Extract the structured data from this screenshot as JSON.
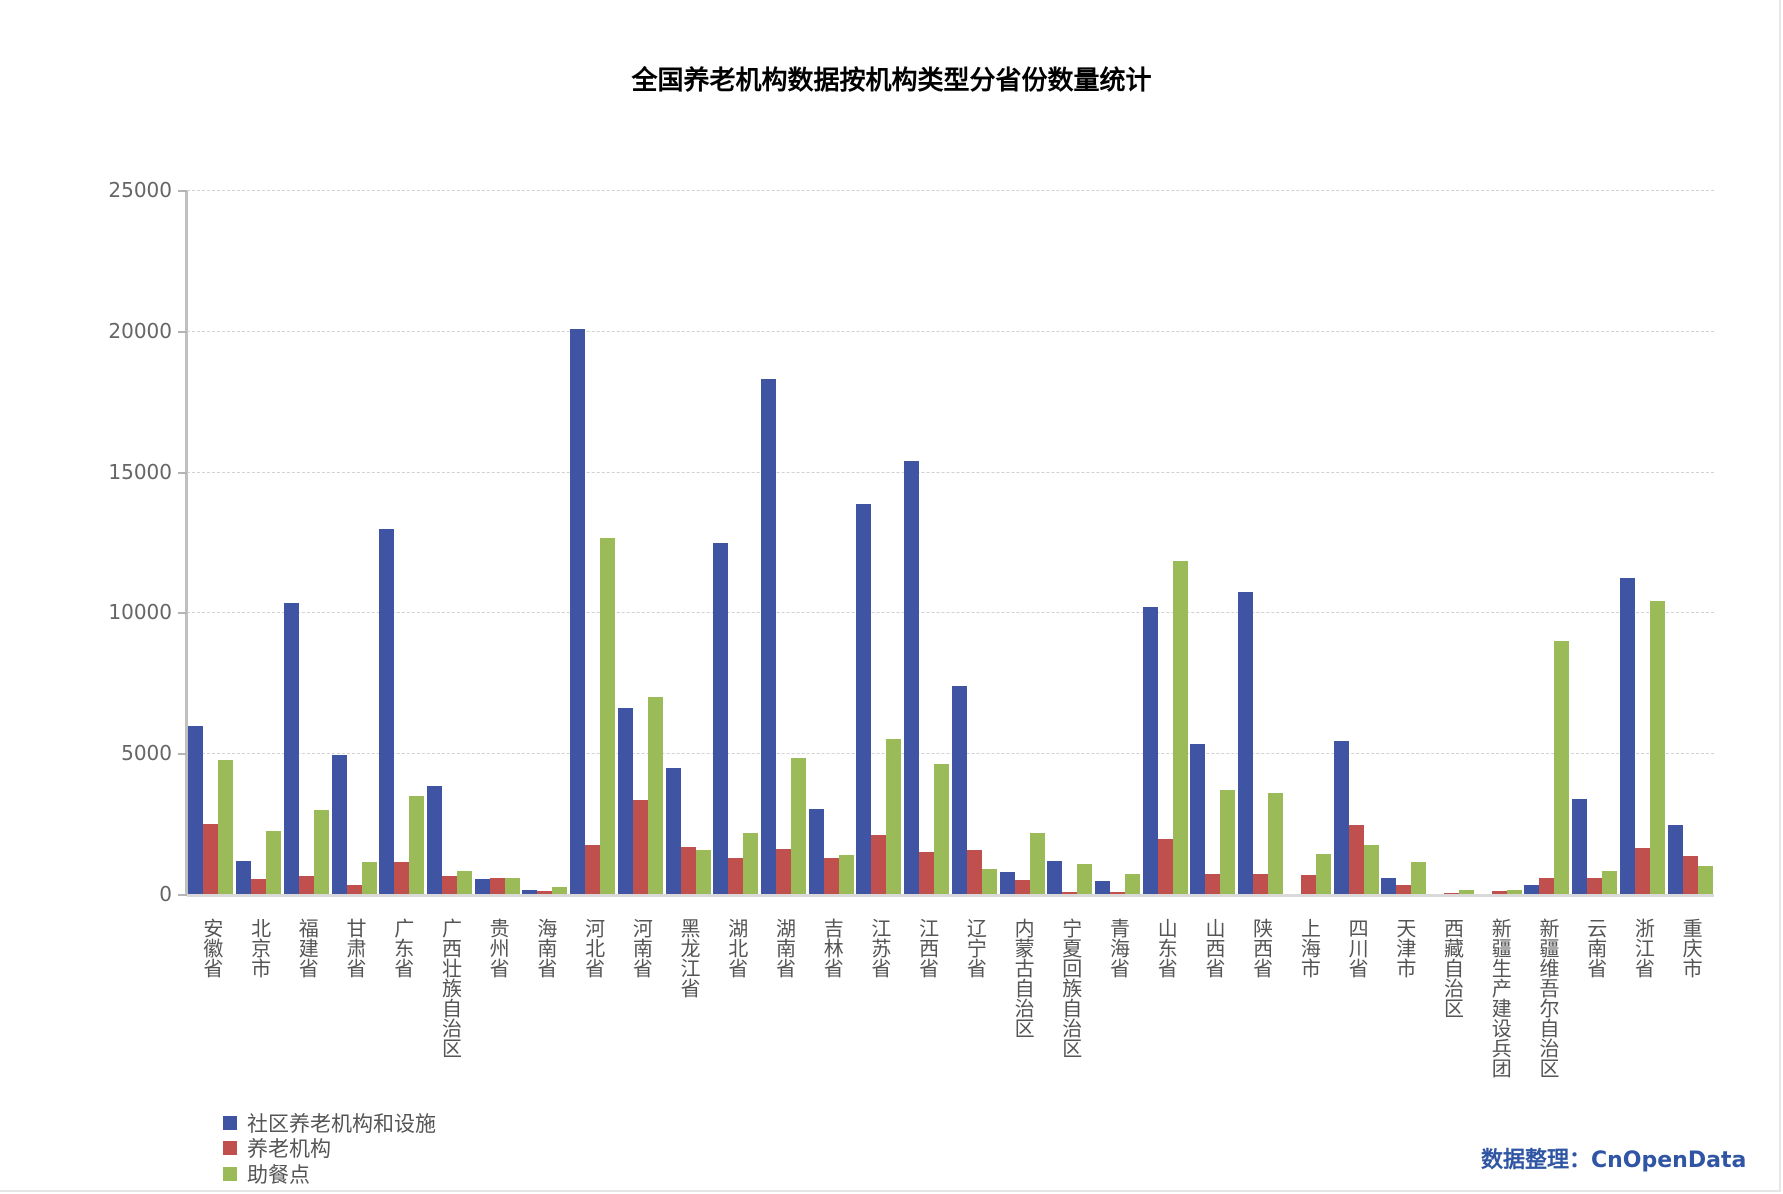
{
  "title": "全国养老机构数据按机构类型分省份数量统计",
  "source_label": "数据整理：CnOpenData",
  "legend": [
    {
      "label": "社区养老机构和设施",
      "color": "#3f55a3"
    },
    {
      "label": "养老机构",
      "color": "#c0504d"
    },
    {
      "label": "助餐点",
      "color": "#9bbb59"
    }
  ],
  "y_axis": {
    "ticks": [
      "0",
      "5000",
      "10000",
      "15000",
      "20000",
      "25000"
    ]
  },
  "chart_data": {
    "type": "bar",
    "title": "全国养老机构数据按机构类型分省份数量统计",
    "xlabel": "",
    "ylabel": "",
    "ylim": [
      0,
      25000
    ],
    "grid": true,
    "legend_position": "bottom-left",
    "categories": [
      "安徽省",
      "北京市",
      "福建省",
      "甘肃省",
      "广东省",
      "广西壮族自治区",
      "贵州省",
      "海南省",
      "河北省",
      "河南省",
      "黑龙江省",
      "湖北省",
      "湖南省",
      "吉林省",
      "江苏省",
      "江西省",
      "辽宁省",
      "内蒙古自治区",
      "宁夏回族自治区",
      "青海省",
      "山东省",
      "山西省",
      "陕西省",
      "上海市",
      "四川省",
      "天津市",
      "西藏自治区",
      "新疆生产建设兵团",
      "新疆维吾尔自治区",
      "云南省",
      "浙江省",
      "重庆市"
    ],
    "series": [
      {
        "name": "社区养老机构和设施",
        "color": "#3f55a3",
        "values": [
          5980,
          1180,
          10330,
          4920,
          12960,
          3840,
          540,
          150,
          20070,
          6620,
          4480,
          12450,
          18280,
          3020,
          13840,
          15380,
          7400,
          780,
          1180,
          460,
          10180,
          5310,
          10720,
          0,
          5440,
          570,
          0,
          0,
          330,
          3380,
          11210,
          2450
        ]
      },
      {
        "name": "养老机构",
        "color": "#c0504d",
        "values": [
          2500,
          540,
          640,
          330,
          1140,
          640,
          570,
          110,
          1750,
          3350,
          1670,
          1270,
          1600,
          1270,
          2110,
          1500,
          1570,
          510,
          60,
          60,
          1960,
          720,
          720,
          670,
          2450,
          330,
          50,
          100,
          570,
          570,
          1630,
          1360
        ]
      },
      {
        "name": "助餐点",
        "color": "#9bbb59",
        "values": [
          4770,
          2240,
          2990,
          1140,
          3480,
          820,
          570,
          250,
          12660,
          7010,
          1570,
          2170,
          4840,
          1390,
          5520,
          4620,
          900,
          2170,
          1060,
          720,
          11810,
          3710,
          3590,
          1420,
          1750,
          1140,
          150,
          150,
          9000,
          820,
          10420,
          1000
        ]
      }
    ]
  }
}
